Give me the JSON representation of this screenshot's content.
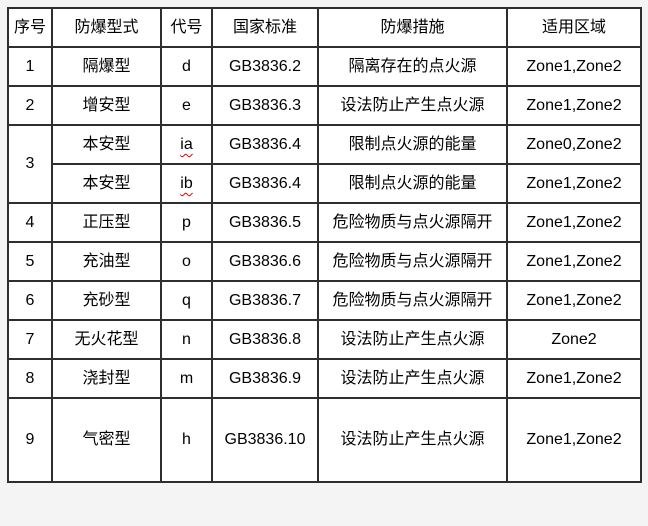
{
  "page": {
    "background_color": "#f4f4f4",
    "cell_background_color": "#ffffff",
    "border_color": "#2e2e2e",
    "text_color": "#000000",
    "misspell_underline_color": "#e00000"
  },
  "table": {
    "columns": {
      "serial": "序号",
      "type": "防爆型式",
      "code": "代号",
      "standard": "国家标准",
      "measure": "防爆措施",
      "zones": "适用区域"
    },
    "rows": [
      {
        "no": "1",
        "type": "隔爆型",
        "code": "d",
        "standard": "GB3836.2",
        "measure": "隔离存在的点火源",
        "zones": "Zone1,Zone2"
      },
      {
        "no": "2",
        "type": "增安型",
        "code": "e",
        "standard": "GB3836.3",
        "measure": "设法防止产生点火源",
        "zones": "Zone1,Zone2"
      },
      {
        "no": "3",
        "type": "本安型",
        "code": "ia",
        "standard": "GB3836.4",
        "measure": "限制点火源的能量",
        "zones": "Zone0,Zone2"
      },
      {
        "no": "3",
        "type": "本安型",
        "code": "ib",
        "standard": "GB3836.4",
        "measure": "限制点火源的能量",
        "zones": "Zone1,Zone2"
      },
      {
        "no": "4",
        "type": "正压型",
        "code": "p",
        "standard": "GB3836.5",
        "measure": "危险物质与点火源隔开",
        "zones": "Zone1,Zone2"
      },
      {
        "no": "5",
        "type": "充油型",
        "code": "o",
        "standard": "GB3836.6",
        "measure": "危险物质与点火源隔开",
        "zones": "Zone1,Zone2"
      },
      {
        "no": "6",
        "type": "充砂型",
        "code": "q",
        "standard": "GB3836.7",
        "measure": "危险物质与点火源隔开",
        "zones": "Zone1,Zone2"
      },
      {
        "no": "7",
        "type": "无火花型",
        "code": "n",
        "standard": "GB3836.8",
        "measure": "设法防止产生点火源",
        "zones": "Zone2"
      },
      {
        "no": "8",
        "type": "浇封型",
        "code": "m",
        "standard": "GB3836.9",
        "measure": "设法防止产生点火源",
        "zones": "Zone1,Zone2"
      },
      {
        "no": "9",
        "type": "气密型",
        "code": "h",
        "standard": "GB3836.10",
        "measure": "设法防止产生点火源",
        "zones": "Zone1,Zone2"
      }
    ]
  }
}
